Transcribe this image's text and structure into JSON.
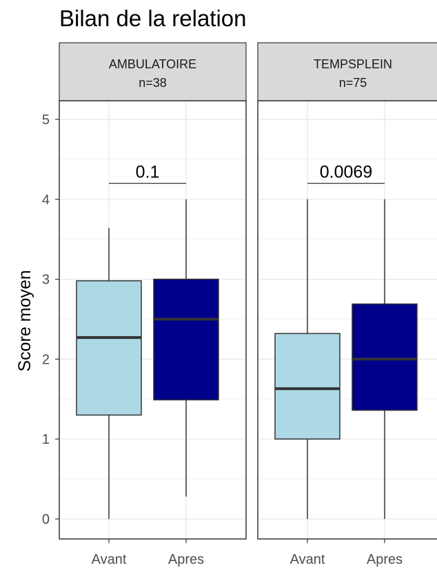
{
  "chart_data": {
    "type": "box",
    "title": "Bilan de la relation",
    "ylabel": "Score moyen",
    "ylim": [
      -0.15,
      5.25
    ],
    "yticks": [
      0,
      1,
      2,
      3,
      4,
      5
    ],
    "grid": true,
    "categories": [
      "Avant",
      "Apres"
    ],
    "colors": {
      "Avant": "#add8e6",
      "Apres": "#00008b"
    },
    "panels": [
      {
        "strip": "AMBULATOIRE",
        "n_label": "n=38",
        "pvalue": "0.1",
        "boxes": [
          {
            "category": "Avant",
            "min": 0.0,
            "q1": 1.3,
            "median": 2.27,
            "q3": 2.98,
            "max": 3.64
          },
          {
            "category": "Apres",
            "min": 0.28,
            "q1": 1.49,
            "median": 2.5,
            "q3": 3.0,
            "max": 4.0
          }
        ]
      },
      {
        "strip": "TEMPSPLEIN",
        "n_label": "n=75",
        "pvalue": "0.0069",
        "boxes": [
          {
            "category": "Avant",
            "min": 0.0,
            "q1": 1.0,
            "median": 1.63,
            "q3": 2.32,
            "max": 4.0
          },
          {
            "category": "Apres",
            "min": 0.0,
            "q1": 1.36,
            "median": 2.0,
            "q3": 2.69,
            "max": 4.0
          }
        ]
      }
    ]
  }
}
